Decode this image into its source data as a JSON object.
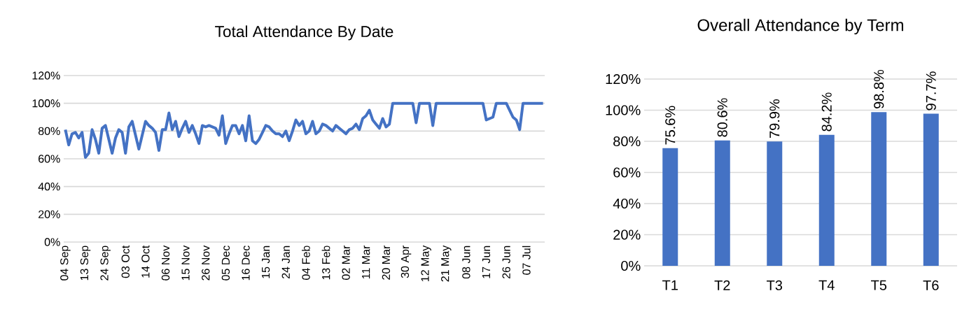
{
  "chart_data": [
    {
      "type": "line",
      "title": "Total Attendance By Date",
      "color": "#4472c4",
      "grid": "y",
      "ylim": [
        0,
        120
      ],
      "yticks": [
        {
          "value": 0,
          "label": "0%"
        },
        {
          "value": 20,
          "label": "20%"
        },
        {
          "value": 40,
          "label": "40%"
        },
        {
          "value": 60,
          "label": "60%"
        },
        {
          "value": 80,
          "label": "80%"
        },
        {
          "value": 100,
          "label": "100%"
        },
        {
          "value": 120,
          "label": "120%"
        }
      ],
      "categories": [
        "04 Sep",
        null,
        null,
        null,
        null,
        null,
        "13 Sep",
        null,
        null,
        null,
        null,
        null,
        "24 Sep",
        null,
        null,
        null,
        null,
        null,
        "03 Oct",
        null,
        null,
        null,
        null,
        null,
        "14 Oct",
        null,
        null,
        null,
        null,
        null,
        "06 Nov",
        null,
        null,
        null,
        null,
        null,
        "15 Nov",
        null,
        null,
        null,
        null,
        null,
        "26 Nov",
        null,
        null,
        null,
        null,
        null,
        "05 Dec",
        null,
        null,
        null,
        null,
        null,
        "16 Dec",
        null,
        null,
        null,
        null,
        null,
        "15 Jan",
        null,
        null,
        null,
        null,
        null,
        "24 Jan",
        null,
        null,
        null,
        null,
        null,
        "04 Feb",
        null,
        null,
        null,
        null,
        null,
        "13 Feb",
        null,
        null,
        null,
        null,
        null,
        "02 Mar",
        null,
        null,
        null,
        null,
        null,
        "11 Mar",
        null,
        null,
        null,
        null,
        null,
        "20 Mar",
        null,
        null,
        null,
        null,
        null,
        "30 Apr",
        null,
        null,
        null,
        null,
        null,
        "12 May",
        null,
        null,
        null,
        null,
        null,
        "21 May",
        null,
        null,
        null,
        null,
        null,
        "08 Jun",
        null,
        null,
        null,
        null,
        null,
        "17 Jun",
        null,
        null,
        null,
        null,
        null,
        "26 Jun",
        null,
        null,
        null,
        null,
        null,
        "07 Jul",
        null,
        null,
        null,
        null,
        null
      ],
      "values": [
        81,
        70,
        78,
        79,
        75,
        79,
        61,
        64,
        81,
        74,
        64,
        82,
        84,
        74,
        64,
        75,
        81,
        79,
        64,
        83,
        87,
        77,
        67,
        77,
        87,
        84,
        82,
        79,
        66,
        81,
        81,
        93,
        81,
        87,
        76,
        82,
        87,
        79,
        84,
        78,
        71,
        84,
        83,
        84,
        83,
        82,
        77,
        91,
        71,
        78,
        84,
        84,
        78,
        84,
        73,
        91,
        73,
        71,
        74,
        79,
        84,
        83,
        80,
        78,
        78,
        76,
        80,
        73,
        80,
        88,
        84,
        87,
        78,
        80,
        87,
        78,
        80,
        85,
        84,
        82,
        80,
        84,
        82,
        80,
        78,
        81,
        82,
        85,
        81,
        89,
        91,
        95,
        88,
        85,
        82,
        89,
        83,
        85,
        100,
        100,
        100,
        100,
        100,
        100,
        100,
        86,
        100,
        100,
        100,
        100,
        84,
        100,
        100,
        100,
        100,
        100,
        100,
        100,
        100,
        100,
        100,
        100,
        100,
        100,
        100,
        100,
        88,
        89,
        90,
        100,
        100,
        100,
        100,
        95,
        90,
        88,
        81,
        100,
        100,
        100,
        100,
        100,
        100,
        100
      ]
    },
    {
      "type": "bar",
      "title": "Overall Attendance by Term",
      "color": "#4472c4",
      "grid": "y",
      "ylim": [
        0,
        120
      ],
      "yticks": [
        {
          "value": 0,
          "label": "0%"
        },
        {
          "value": 20,
          "label": "20%"
        },
        {
          "value": 40,
          "label": "40%"
        },
        {
          "value": 60,
          "label": "60%"
        },
        {
          "value": 80,
          "label": "80%"
        },
        {
          "value": 100,
          "label": "100%"
        },
        {
          "value": 120,
          "label": "120%"
        }
      ],
      "categories": [
        "T1",
        "T2",
        "T3",
        "T4",
        "T5",
        "T6"
      ],
      "values": [
        75.6,
        80.6,
        79.9,
        84.2,
        98.8,
        97.7
      ],
      "value_labels": [
        "75.6%",
        "80.6%",
        "79.9%",
        "84.2%",
        "98.8%",
        "97.7%"
      ]
    }
  ]
}
